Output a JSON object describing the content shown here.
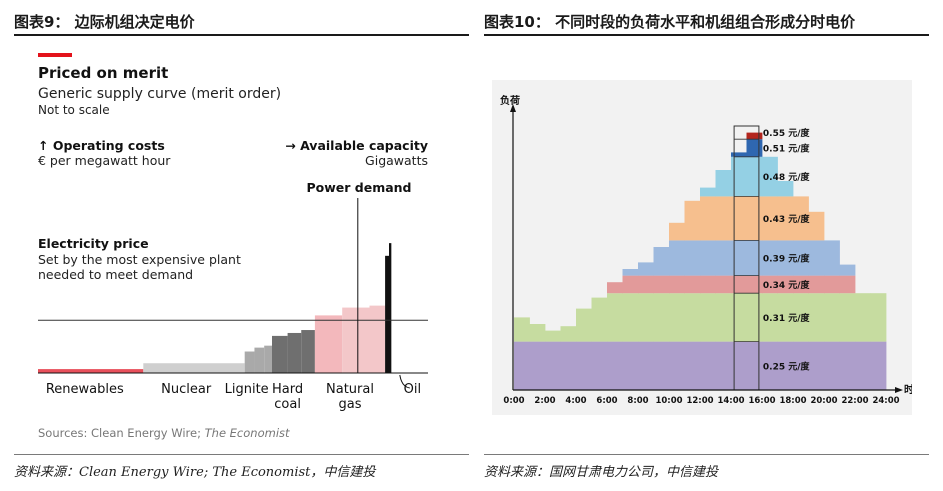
{
  "left_figure": {
    "caption": "图表9： 边际机组决定电价",
    "source": "资料来源：Clean Energy Wire; The Economist，中信建投"
  },
  "right_figure": {
    "caption": "图表10： 不同时段的负荷水平和机组组合形成分时电价",
    "source": "资料来源：国网甘肃电力公司，中信建投"
  },
  "chart_data": [
    {
      "type": "bar",
      "title": "Priced on merit",
      "subtitle": "Generic supply curve (merit order)",
      "note": "Not to scale",
      "y_axis_label": "↑ Operating costs",
      "y_axis_unit": "€ per megawatt hour",
      "x_axis_label": "→ Available capacity",
      "x_axis_unit": "Gigawatts",
      "power_demand_label": "Power demand",
      "price_label": "Electricity price",
      "price_note_line1": "Set by the most expensive plant",
      "price_note_line2": "needed to meet demand",
      "source_line": "Sources: Clean Energy Wire;",
      "source_publisher": "The Economist",
      "price_level": 54,
      "x_max": 100,
      "y_max": 100,
      "steps": [
        {
          "category": "Renewables",
          "x0": 0,
          "x1": 27,
          "y": 4,
          "color": "#e8505b"
        },
        {
          "category": "Nuclear",
          "x0": 27,
          "x1": 53,
          "y": 10,
          "color": "#cfcfcf"
        },
        {
          "category": "Lignite",
          "x0": 53,
          "x1": 55.5,
          "y": 22,
          "color": "#a9a9a9"
        },
        {
          "category": "Lignite",
          "x0": 55.5,
          "x1": 58,
          "y": 26,
          "color": "#a9a9a9"
        },
        {
          "category": "Lignite",
          "x0": 58,
          "x1": 60,
          "y": 28,
          "color": "#a9a9a9"
        },
        {
          "category": "Hard coal",
          "x0": 60,
          "x1": 64,
          "y": 38,
          "color": "#6f6f6f"
        },
        {
          "category": "Hard coal",
          "x0": 64,
          "x1": 67.5,
          "y": 41,
          "color": "#6f6f6f"
        },
        {
          "category": "Hard coal",
          "x0": 67.5,
          "x1": 71,
          "y": 44,
          "color": "#6f6f6f"
        },
        {
          "category": "Natural gas",
          "x0": 71,
          "x1": 78,
          "y": 59,
          "color": "#f3b8bc"
        },
        {
          "category": "Natural gas",
          "x0": 78,
          "x1": 85,
          "y": 67,
          "color": "#f3c7c9"
        },
        {
          "category": "Natural gas",
          "x0": 85,
          "x1": 89,
          "y": 69,
          "color": "#f3c7c9"
        },
        {
          "category": "Oil",
          "x0": 89,
          "x1": 90,
          "y": 120,
          "color": "#111111"
        },
        {
          "category": "Oil",
          "x0": 90,
          "x1": 90.6,
          "y": 133,
          "color": "#111111"
        }
      ],
      "category_labels": [
        {
          "text": "Renewables",
          "x": 12
        },
        {
          "text": "Nuclear",
          "x": 38
        },
        {
          "text": "Lignite",
          "x": 53.5
        },
        {
          "text": "Hard",
          "x": 64,
          "line2": "coal"
        },
        {
          "text": "Natural",
          "x": 80,
          "line2": "gas"
        },
        {
          "text": "Oil",
          "x": 96
        }
      ],
      "power_demand_x": 82
    },
    {
      "type": "area",
      "y_axis_label": "负荷",
      "x_axis_label": "时间",
      "x_ticks": [
        "0:00",
        "2:00",
        "4:00",
        "6:00",
        "8:00",
        "10:00",
        "12:00",
        "14:00",
        "16:00",
        "18:00",
        "20:00",
        "22:00",
        "24:00"
      ],
      "x_range": [
        0,
        24
      ],
      "y_range": [
        0,
        100
      ],
      "load_profile": {
        "hours": [
          0,
          1,
          2,
          3,
          4,
          5,
          6,
          7,
          8,
          9,
          10,
          11,
          12,
          13,
          14,
          15,
          16,
          17,
          18,
          19,
          20,
          21,
          22,
          23,
          24
        ],
        "values": [
          33,
          30,
          27,
          29,
          37,
          42,
          49,
          55,
          58,
          65,
          76,
          86,
          92,
          100,
          108,
          117,
          106,
          95,
          88,
          81,
          68,
          57,
          44,
          44,
          44
        ]
      },
      "tiers": [
        {
          "label": "0.25 元/度",
          "y0": 0,
          "y1": 22,
          "color": "#ad9ecb"
        },
        {
          "label": "0.31 元/度",
          "y0": 22,
          "y1": 44,
          "color": "#c6dca0"
        },
        {
          "label": "0.34 元/度",
          "y0": 44,
          "y1": 52,
          "color": "#e29a9a"
        },
        {
          "label": "0.39 元/度",
          "y0": 52,
          "y1": 68,
          "color": "#9db9de"
        },
        {
          "label": "0.43 元/度",
          "y0": 68,
          "y1": 88,
          "color": "#f6bf8e"
        },
        {
          "label": "0.48 元/度",
          "y0": 88,
          "y1": 106,
          "color": "#94d0e4"
        },
        {
          "label": "0.51 元/度",
          "y0": 106,
          "y1": 114,
          "color": "#2f67b0"
        },
        {
          "label": "0.55 元/度",
          "y0": 114,
          "y1": 120,
          "color": "#b3261e"
        }
      ],
      "peak_window": [
        14.2,
        15.8
      ]
    }
  ]
}
